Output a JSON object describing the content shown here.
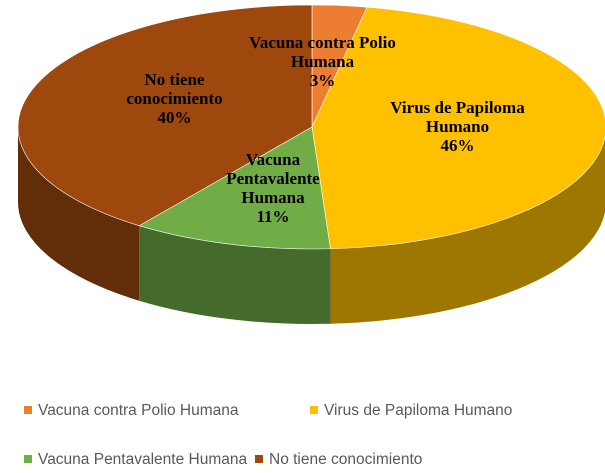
{
  "chart_data": {
    "type": "pie3d",
    "categories": [
      "Vacuna contra Polio Humana",
      "Virus de Papiloma Humano",
      "Vacuna Pentavalente Humana",
      "No tiene conocimiento"
    ],
    "values": [
      3,
      46,
      11,
      40
    ],
    "value_labels": [
      "3%",
      "46%",
      "11%",
      "40%"
    ],
    "colors": [
      "#ED7D31",
      "#FFC000",
      "#70AD47",
      "#9E480E"
    ],
    "legend": "bottom"
  }
}
